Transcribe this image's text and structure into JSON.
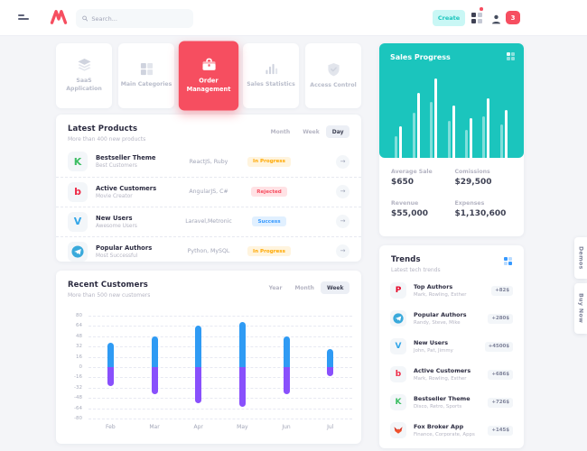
{
  "header": {
    "search_placeholder": "Search...",
    "create_label": "Create",
    "notification_count": "3"
  },
  "colors": {
    "accent_pink": "#F64E60",
    "teal": "#1BC5BD",
    "blue": "#3699FF",
    "purple": "#8950FC",
    "warning": "#FFA800"
  },
  "nav_cards": [
    {
      "label": "SaaS Application",
      "icon": "layers-icon",
      "active": false
    },
    {
      "label": "Main Categories",
      "icon": "grid-icon",
      "active": false
    },
    {
      "label": "Order Management",
      "icon": "briefcase-icon",
      "active": true
    },
    {
      "label": "Sales Statistics",
      "icon": "bar-chart-icon",
      "active": false
    },
    {
      "label": "Access Control",
      "icon": "shield-check-icon",
      "active": false
    }
  ],
  "latest_products": {
    "title": "Latest Products",
    "subtitle": "More than 400 new products",
    "tabs": [
      "Month",
      "Week",
      "Day"
    ],
    "active_tab": "Day",
    "rows": [
      {
        "icon": "kickstarter-icon",
        "glyph": "K",
        "title": "Bestseller Theme",
        "subtitle": "Best Customers",
        "tech": "ReactJS, Ruby",
        "status": "In Progress",
        "status_type": "warning"
      },
      {
        "icon": "beats-icon",
        "glyph": "b",
        "title": "Active Customers",
        "subtitle": "Movie Creator",
        "tech": "AngularJS, C#",
        "status": "Rejected",
        "status_type": "danger"
      },
      {
        "icon": "vimeo-icon",
        "glyph": "V",
        "title": "New Users",
        "subtitle": "Awesome Users",
        "tech": "Laravel,Metronic",
        "status": "Success",
        "status_type": "info"
      },
      {
        "icon": "telegram-icon",
        "glyph": "",
        "title": "Popular Authors",
        "subtitle": "Most Successful",
        "tech": "Python, MySQL",
        "status": "In Progress",
        "status_type": "warning"
      }
    ]
  },
  "sales_progress": {
    "title": "Sales Progress",
    "stats": [
      {
        "label": "Average Sale",
        "value": "$650"
      },
      {
        "label": "Comissions",
        "value": "$29,500"
      },
      {
        "label": "Revenue",
        "value": "$55,000"
      },
      {
        "label": "Expenses",
        "value": "$1,130,600"
      }
    ]
  },
  "recent_customers": {
    "title": "Recent Customers",
    "subtitle": "More than 500 new customers",
    "tabs": [
      "Year",
      "Month",
      "Week"
    ],
    "active_tab": "Week"
  },
  "trends": {
    "title": "Trends",
    "subtitle": "Latest tech trends",
    "items": [
      {
        "icon": "pinterest-icon",
        "glyph": "P",
        "title": "Top Authors",
        "subtitle": "Mark, Rowling, Esther",
        "delta": "+82$"
      },
      {
        "icon": "telegram-icon",
        "glyph": "",
        "title": "Popular Authors",
        "subtitle": "Randy, Steve, Mike",
        "delta": "+280$"
      },
      {
        "icon": "vimeo-icon",
        "glyph": "V",
        "title": "New Users",
        "subtitle": "John, Pat, Jimmy",
        "delta": "+4500$"
      },
      {
        "icon": "beats-icon",
        "glyph": "b",
        "title": "Active Customers",
        "subtitle": "Mark, Rowling, Esther",
        "delta": "+686$"
      },
      {
        "icon": "kickstarter-icon",
        "glyph": "K",
        "title": "Bestseller Theme",
        "subtitle": "Disco, Retro, Sports",
        "delta": "+726$"
      },
      {
        "icon": "fox-icon",
        "glyph": "",
        "title": "Fox Broker App",
        "subtitle": "Finance, Corporate, Apps",
        "delta": "+145$"
      }
    ]
  },
  "side_tabs": [
    {
      "label": "Demos"
    },
    {
      "label": "Buy Now"
    }
  ],
  "chart_data": [
    {
      "name": "recent_customers_chart",
      "type": "bar",
      "title": "Recent Customers",
      "categories": [
        "Feb",
        "Mar",
        "Apr",
        "May",
        "Jun",
        "Jul"
      ],
      "series": [
        {
          "name": "gained",
          "color": "#2F9BF4",
          "values": [
            38,
            48,
            64,
            70,
            48,
            28
          ]
        },
        {
          "name": "lost",
          "color": "#8950FC",
          "values": [
            -30,
            -42,
            -56,
            -62,
            -42,
            -14
          ]
        }
      ],
      "ylim": [
        -80,
        80
      ],
      "yticks": [
        80,
        64,
        48,
        32,
        16,
        0,
        -16,
        -32,
        -48,
        -64,
        -80
      ],
      "grid": "dashed-horizontal",
      "legend": false
    },
    {
      "name": "sales_progress_chart",
      "type": "bar",
      "values": [
        35,
        72,
        88,
        58,
        44,
        66,
        53
      ],
      "ylim": [
        0,
        100
      ],
      "bar_color": "#FFFFFF",
      "shadow_color": "rgba(255,255,255,0.45)",
      "shadow_ratio": 0.7
    }
  ]
}
